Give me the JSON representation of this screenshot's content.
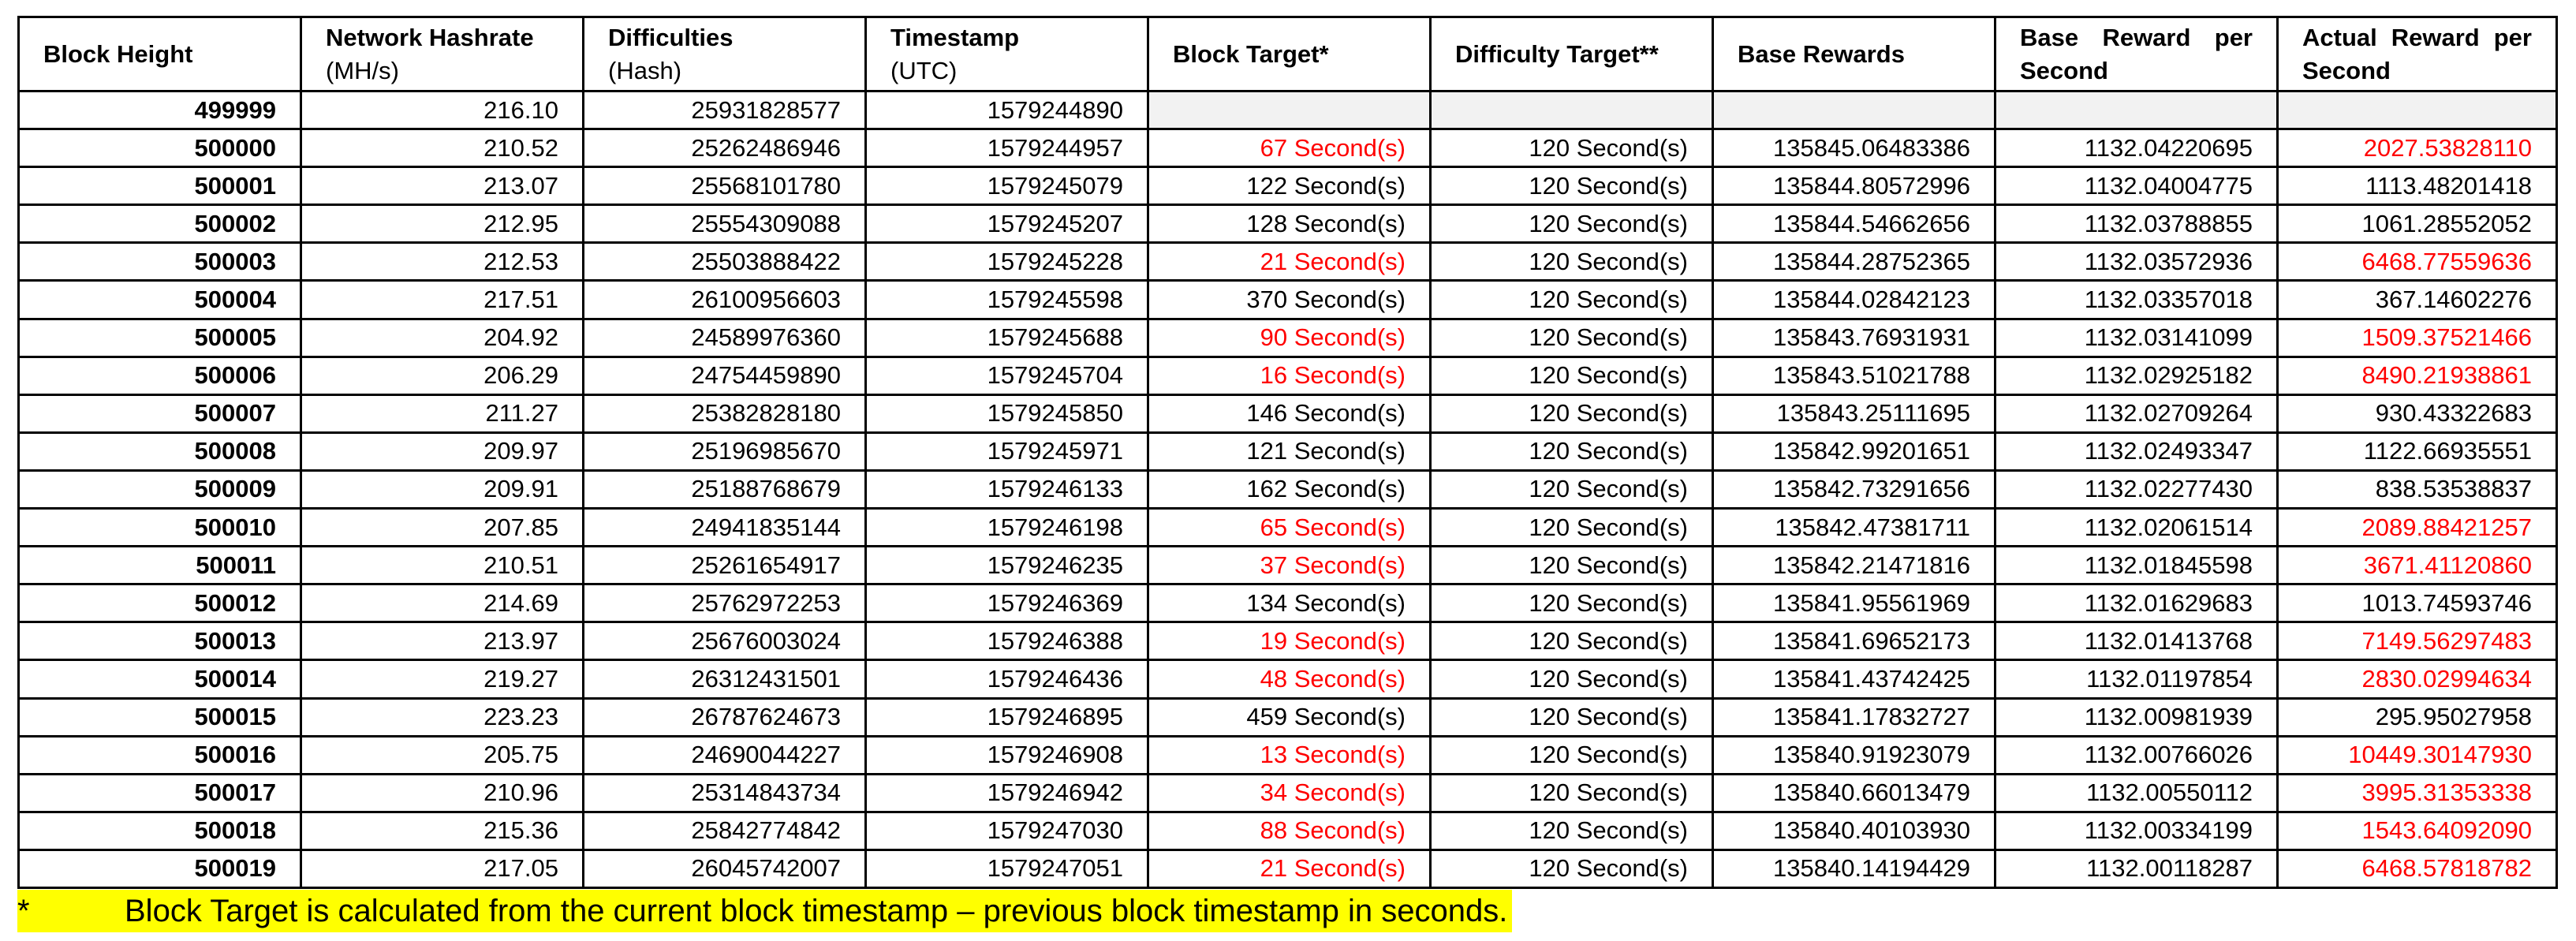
{
  "columns": [
    {
      "title": "Block Height",
      "sub": ""
    },
    {
      "title": "Network Hashrate",
      "sub": "(MH/s)"
    },
    {
      "title": "Difficulties",
      "sub": "(Hash)"
    },
    {
      "title": "Timestamp",
      "sub": "(UTC)"
    },
    {
      "title": "Block Target*",
      "sub": ""
    },
    {
      "title": "Difficulty Target**",
      "sub": ""
    },
    {
      "title": "Base Rewards",
      "sub": ""
    },
    {
      "title": "Base Reward per Second",
      "sub": ""
    },
    {
      "title": "Actual Reward per Second",
      "sub": ""
    }
  ],
  "header_words": {
    "base_reward_line1": "Base   Reward   per",
    "base_reward_line2": "Second",
    "actual_reward_line1": "Actual Reward per",
    "actual_reward_line2": "Second"
  },
  "rows": [
    {
      "height": "499999",
      "hashrate": "216.10",
      "difficulty": "25931828577",
      "timestamp": "1579244890",
      "block_target": "",
      "difficulty_target": "",
      "base_rewards": "",
      "base_per_sec": "",
      "actual_per_sec": "",
      "highlight": false
    },
    {
      "height": "500000",
      "hashrate": "210.52",
      "difficulty": "25262486946",
      "timestamp": "1579244957",
      "block_target": "67 Second(s)",
      "difficulty_target": "120 Second(s)",
      "base_rewards": "135845.06483386",
      "base_per_sec": "1132.04220695",
      "actual_per_sec": "2027.53828110",
      "highlight": true
    },
    {
      "height": "500001",
      "hashrate": "213.07",
      "difficulty": "25568101780",
      "timestamp": "1579245079",
      "block_target": "122 Second(s)",
      "difficulty_target": "120 Second(s)",
      "base_rewards": "135844.80572996",
      "base_per_sec": "1132.04004775",
      "actual_per_sec": "1113.48201418",
      "highlight": false
    },
    {
      "height": "500002",
      "hashrate": "212.95",
      "difficulty": "25554309088",
      "timestamp": "1579245207",
      "block_target": "128 Second(s)",
      "difficulty_target": "120 Second(s)",
      "base_rewards": "135844.54662656",
      "base_per_sec": "1132.03788855",
      "actual_per_sec": "1061.28552052",
      "highlight": false
    },
    {
      "height": "500003",
      "hashrate": "212.53",
      "difficulty": "25503888422",
      "timestamp": "1579245228",
      "block_target": "21 Second(s)",
      "difficulty_target": "120 Second(s)",
      "base_rewards": "135844.28752365",
      "base_per_sec": "1132.03572936",
      "actual_per_sec": "6468.77559636",
      "highlight": true
    },
    {
      "height": "500004",
      "hashrate": "217.51",
      "difficulty": "26100956603",
      "timestamp": "1579245598",
      "block_target": "370 Second(s)",
      "difficulty_target": "120 Second(s)",
      "base_rewards": "135844.02842123",
      "base_per_sec": "1132.03357018",
      "actual_per_sec": "367.14602276",
      "highlight": false
    },
    {
      "height": "500005",
      "hashrate": "204.92",
      "difficulty": "24589976360",
      "timestamp": "1579245688",
      "block_target": "90 Second(s)",
      "difficulty_target": "120 Second(s)",
      "base_rewards": "135843.76931931",
      "base_per_sec": "1132.03141099",
      "actual_per_sec": "1509.37521466",
      "highlight": true
    },
    {
      "height": "500006",
      "hashrate": "206.29",
      "difficulty": "24754459890",
      "timestamp": "1579245704",
      "block_target": "16 Second(s)",
      "difficulty_target": "120 Second(s)",
      "base_rewards": "135843.51021788",
      "base_per_sec": "1132.02925182",
      "actual_per_sec": "8490.21938861",
      "highlight": true
    },
    {
      "height": "500007",
      "hashrate": "211.27",
      "difficulty": "25382828180",
      "timestamp": "1579245850",
      "block_target": "146 Second(s)",
      "difficulty_target": "120 Second(s)",
      "base_rewards": "135843.25111695",
      "base_per_sec": "1132.02709264",
      "actual_per_sec": "930.43322683",
      "highlight": false
    },
    {
      "height": "500008",
      "hashrate": "209.97",
      "difficulty": "25196985670",
      "timestamp": "1579245971",
      "block_target": "121 Second(s)",
      "difficulty_target": "120 Second(s)",
      "base_rewards": "135842.99201651",
      "base_per_sec": "1132.02493347",
      "actual_per_sec": "1122.66935551",
      "highlight": false
    },
    {
      "height": "500009",
      "hashrate": "209.91",
      "difficulty": "25188768679",
      "timestamp": "1579246133",
      "block_target": "162 Second(s)",
      "difficulty_target": "120 Second(s)",
      "base_rewards": "135842.73291656",
      "base_per_sec": "1132.02277430",
      "actual_per_sec": "838.53538837",
      "highlight": false
    },
    {
      "height": "500010",
      "hashrate": "207.85",
      "difficulty": "24941835144",
      "timestamp": "1579246198",
      "block_target": "65 Second(s)",
      "difficulty_target": "120 Second(s)",
      "base_rewards": "135842.47381711",
      "base_per_sec": "1132.02061514",
      "actual_per_sec": "2089.88421257",
      "highlight": true
    },
    {
      "height": "500011",
      "hashrate": "210.51",
      "difficulty": "25261654917",
      "timestamp": "1579246235",
      "block_target": "37 Second(s)",
      "difficulty_target": "120 Second(s)",
      "base_rewards": "135842.21471816",
      "base_per_sec": "1132.01845598",
      "actual_per_sec": "3671.41120860",
      "highlight": true
    },
    {
      "height": "500012",
      "hashrate": "214.69",
      "difficulty": "25762972253",
      "timestamp": "1579246369",
      "block_target": "134 Second(s)",
      "difficulty_target": "120 Second(s)",
      "base_rewards": "135841.95561969",
      "base_per_sec": "1132.01629683",
      "actual_per_sec": "1013.74593746",
      "highlight": false
    },
    {
      "height": "500013",
      "hashrate": "213.97",
      "difficulty": "25676003024",
      "timestamp": "1579246388",
      "block_target": "19 Second(s)",
      "difficulty_target": "120 Second(s)",
      "base_rewards": "135841.69652173",
      "base_per_sec": "1132.01413768",
      "actual_per_sec": "7149.56297483",
      "highlight": true
    },
    {
      "height": "500014",
      "hashrate": "219.27",
      "difficulty": "26312431501",
      "timestamp": "1579246436",
      "block_target": "48 Second(s)",
      "difficulty_target": "120 Second(s)",
      "base_rewards": "135841.43742425",
      "base_per_sec": "1132.01197854",
      "actual_per_sec": "2830.02994634",
      "highlight": true
    },
    {
      "height": "500015",
      "hashrate": "223.23",
      "difficulty": "26787624673",
      "timestamp": "1579246895",
      "block_target": "459 Second(s)",
      "difficulty_target": "120 Second(s)",
      "base_rewards": "135841.17832727",
      "base_per_sec": "1132.00981939",
      "actual_per_sec": "295.95027958",
      "highlight": false
    },
    {
      "height": "500016",
      "hashrate": "205.75",
      "difficulty": "24690044227",
      "timestamp": "1579246908",
      "block_target": "13 Second(s)",
      "difficulty_target": "120 Second(s)",
      "base_rewards": "135840.91923079",
      "base_per_sec": "1132.00766026",
      "actual_per_sec": "10449.30147930",
      "highlight": true
    },
    {
      "height": "500017",
      "hashrate": "210.96",
      "difficulty": "25314843734",
      "timestamp": "1579246942",
      "block_target": "34 Second(s)",
      "difficulty_target": "120 Second(s)",
      "base_rewards": "135840.66013479",
      "base_per_sec": "1132.00550112",
      "actual_per_sec": "3995.31353338",
      "highlight": true
    },
    {
      "height": "500018",
      "hashrate": "215.36",
      "difficulty": "25842774842",
      "timestamp": "1579247030",
      "block_target": "88 Second(s)",
      "difficulty_target": "120 Second(s)",
      "base_rewards": "135840.40103930",
      "base_per_sec": "1132.00334199",
      "actual_per_sec": "1543.64092090",
      "highlight": true
    },
    {
      "height": "500019",
      "hashrate": "217.05",
      "difficulty": "26045742007",
      "timestamp": "1579247051",
      "block_target": "21 Second(s)",
      "difficulty_target": "120 Second(s)",
      "base_rewards": "135840.14194429",
      "base_per_sec": "1132.00118287",
      "actual_per_sec": "6468.57818782",
      "highlight": true
    }
  ],
  "footnote": {
    "marker": "*",
    "text": "Block Target is calculated from the current block timestamp – previous block timestamp in seconds."
  },
  "colors": {
    "highlight_text": "#ff0000",
    "footnote_background": "#ffff00",
    "empty_cell_background": "#f2f2f2",
    "grid_lines": "#000000"
  }
}
